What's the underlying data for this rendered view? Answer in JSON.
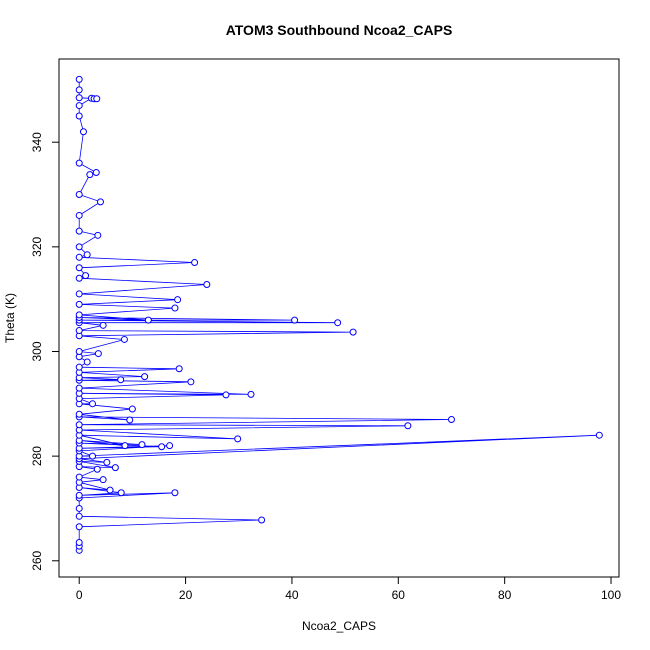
{
  "chart_data": {
    "type": "line",
    "title": "ATOM3 Southbound Ncoa2_CAPS",
    "x_label": "Ncoa2_CAPS",
    "y_label": "Theta (K)",
    "xlim": [
      -3.8,
      101.5
    ],
    "ylim": [
      256.9,
      355.9
    ],
    "xticks": [
      0,
      20,
      40,
      60,
      80,
      100
    ],
    "yticks": [
      260,
      280,
      300,
      320,
      340
    ],
    "series": [
      {
        "color": "#0000ff",
        "x": [
          0,
          0,
          0,
          0,
          34.3,
          0,
          0,
          0,
          18,
          0,
          7.9,
          0,
          5.8,
          0,
          4.5,
          0,
          3.4,
          0,
          6.8,
          0,
          5.2,
          0,
          97.8,
          0,
          2.5,
          0,
          17,
          0,
          15.5,
          0,
          11.8,
          0,
          8.6,
          0,
          29.8,
          0,
          61.8,
          0,
          70,
          0,
          9.5,
          0,
          10,
          0,
          2.5,
          0,
          27.6,
          0,
          32.3,
          0,
          21,
          0,
          7.8,
          0,
          12.3,
          0,
          18.8,
          0,
          1.5,
          0,
          3.6,
          0,
          8.5,
          0,
          51.5,
          0,
          4.5,
          0,
          48.6,
          0,
          40.5,
          0,
          13,
          0,
          18,
          0,
          18.5,
          0,
          24,
          0,
          1.2,
          0,
          21.7,
          0,
          1.5,
          0,
          3.5,
          0,
          0,
          4,
          0,
          2,
          3.2,
          0,
          0.8,
          0,
          0,
          2.3,
          2.8,
          3.3,
          0,
          0,
          0
        ],
        "values": [
          262,
          262.8,
          263.5,
          266.5,
          267.8,
          268.5,
          270,
          272,
          273,
          272.5,
          273,
          274,
          273.5,
          275,
          275.5,
          276,
          277.5,
          278,
          277.8,
          279,
          278.8,
          279.5,
          284,
          280,
          280,
          281,
          282,
          281.5,
          281.8,
          282.5,
          282.2,
          283,
          282,
          284,
          283.3,
          285,
          285.8,
          286,
          287,
          287.5,
          286.9,
          288,
          289,
          290,
          290,
          291,
          291.7,
          292,
          291.8,
          293,
          294.2,
          294.5,
          294.6,
          295,
          295.2,
          296,
          296.7,
          297,
          298,
          299,
          299.6,
          300,
          302.3,
          303,
          303.7,
          304,
          305,
          305.5,
          305.5,
          306,
          306,
          306.5,
          306,
          307,
          308.3,
          309,
          309.9,
          311,
          312.8,
          314,
          314.5,
          316,
          317,
          318,
          318.5,
          320,
          322.2,
          323,
          326,
          328.6,
          330,
          333.8,
          334.2,
          336,
          342,
          345,
          347,
          348.4,
          348.3,
          348.3,
          348.5,
          350,
          352
        ]
      }
    ]
  }
}
